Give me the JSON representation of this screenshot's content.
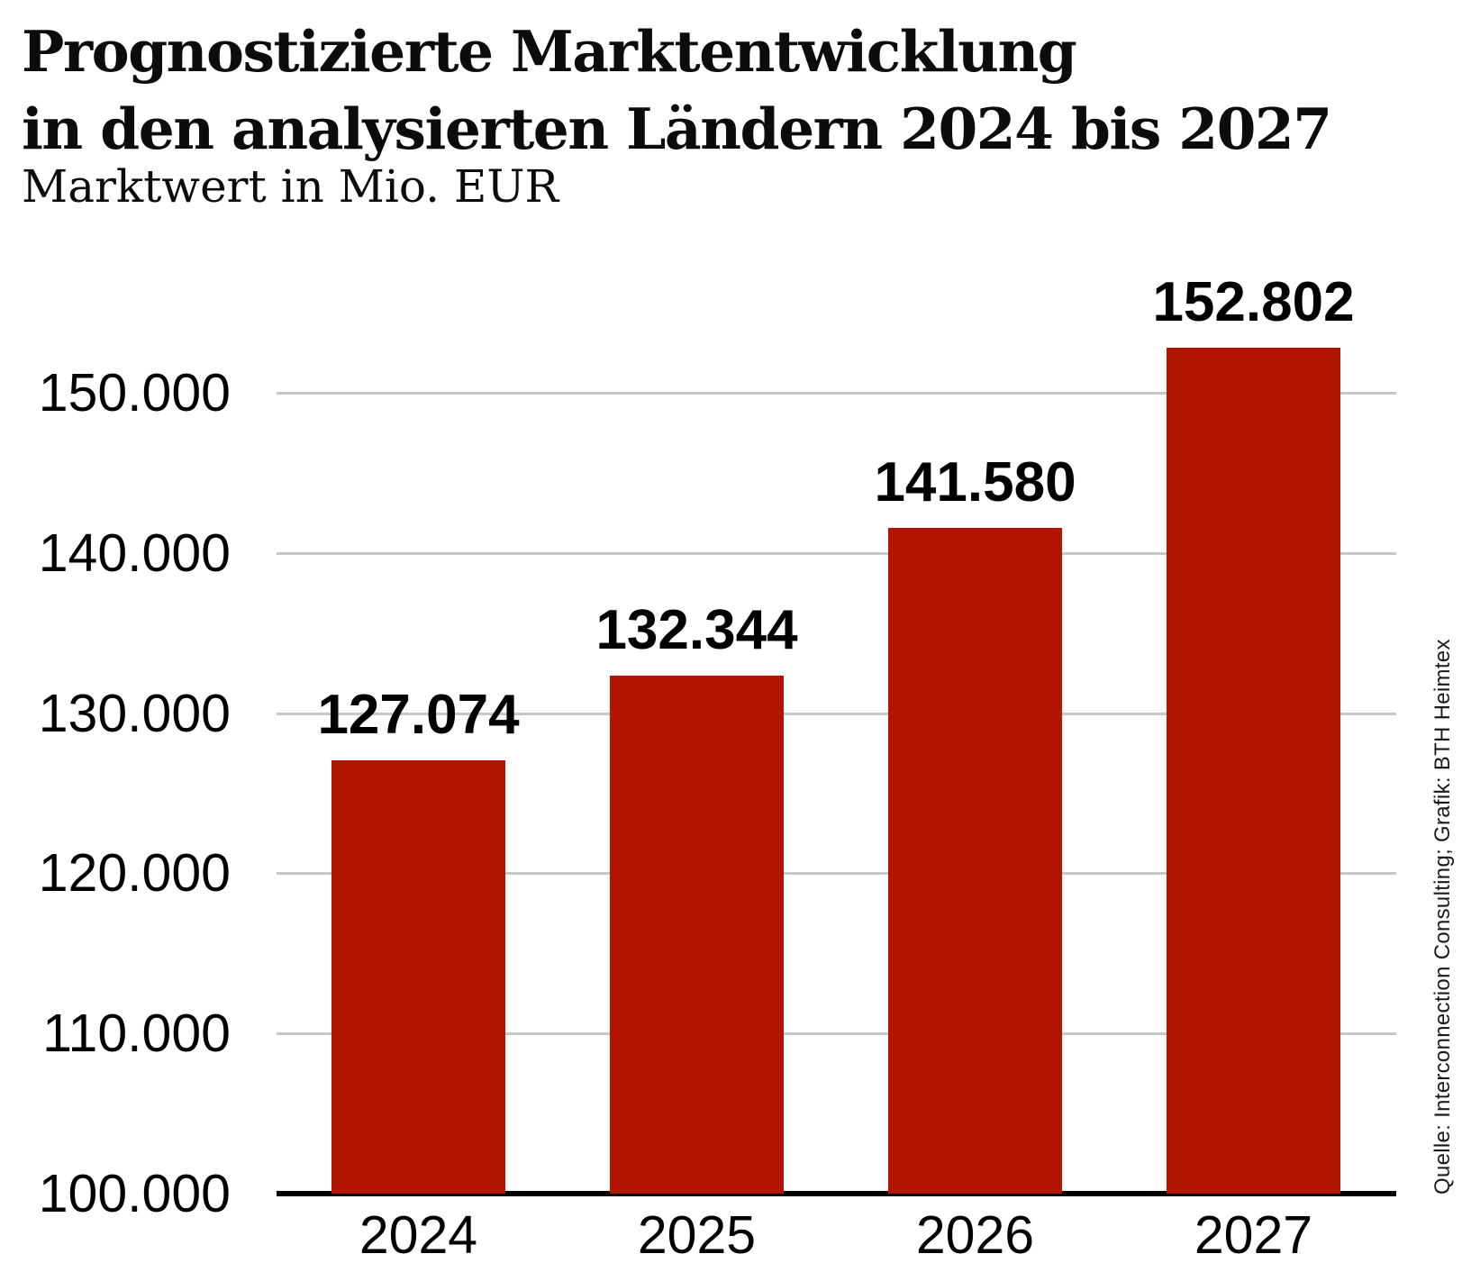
{
  "header": {
    "title_line1": "Prognostizierte Marktentwicklung",
    "title_line2": "in den analysierten Ländern 2024 bis 2027",
    "subtitle": "Marktwert in Mio. EUR"
  },
  "chart_data": {
    "type": "bar",
    "title": "Prognostizierte Marktentwicklung in den analysierten Ländern 2024 bis 2027",
    "subtitle": "Marktwert in Mio. EUR",
    "categories": [
      "2024",
      "2025",
      "2026",
      "2027"
    ],
    "values": [
      127074,
      132344,
      141580,
      152802
    ],
    "value_labels": [
      "127.074",
      "132.344",
      "141.580",
      "152.802"
    ],
    "xlabel": "",
    "ylabel": "Marktwert in Mio. EUR",
    "ylim": [
      100000,
      155000
    ],
    "yticks": [
      100000,
      110000,
      120000,
      130000,
      140000,
      150000
    ],
    "ytick_labels": [
      "100.000",
      "110.000",
      "120.000",
      "130.000",
      "140.000",
      "150.000"
    ],
    "grid": true,
    "legend_position": "none",
    "bar_color": "#b21600",
    "gridline_color": "#c7c7c7",
    "axis_color": "#000000"
  },
  "source_note": "Quelle: Interconnection Consulting; Grafik: BTH Heimtex"
}
